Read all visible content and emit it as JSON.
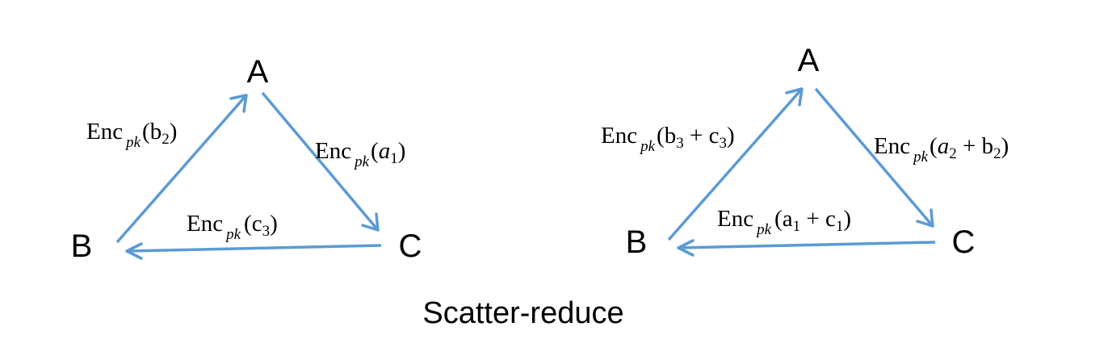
{
  "diagrams": [
    {
      "nodes": {
        "a": "A",
        "b": "B",
        "c": "C"
      },
      "edges": {
        "b_to_a": {
          "fn": "Enc",
          "sub": "pk",
          "open": "(",
          "term1": "b",
          "term1_sub": "2",
          "plus": "",
          "term2": "",
          "term2_sub": "",
          "close": ")"
        },
        "a_to_c": {
          "fn": "Enc",
          "sub": "pk",
          "open": "(",
          "term1": "a",
          "term1_sub": "1",
          "plus": "",
          "term2": "",
          "term2_sub": "",
          "close": ")"
        },
        "c_to_b": {
          "fn": "Enc",
          "sub": "pk",
          "open": "(",
          "term1": "c",
          "term1_sub": "3",
          "plus": "",
          "term2": "",
          "term2_sub": "",
          "close": ")"
        }
      }
    },
    {
      "nodes": {
        "a": "A",
        "b": "B",
        "c": "C"
      },
      "edges": {
        "b_to_a": {
          "fn": "Enc",
          "sub": "pk",
          "open": "(",
          "term1": "b",
          "term1_sub": "3",
          "plus": " + ",
          "term2": "c",
          "term2_sub": "3",
          "close": ")"
        },
        "a_to_c": {
          "fn": "Enc",
          "sub": "pk",
          "open": "(",
          "term1": "a",
          "term1_sub": "2",
          "plus": " + ",
          "term2": "b",
          "term2_sub": "2",
          "close": ")"
        },
        "c_to_b": {
          "fn": "Enc",
          "sub": "pk",
          "open": "(",
          "term1": "a",
          "term1_sub": "1",
          "plus": " + ",
          "term2": "c",
          "term2_sub": "1",
          "close": ")"
        }
      }
    }
  ],
  "caption": "Scatter-reduce",
  "colors": {
    "arrow": "#5b9bd5",
    "text": "#000000"
  }
}
